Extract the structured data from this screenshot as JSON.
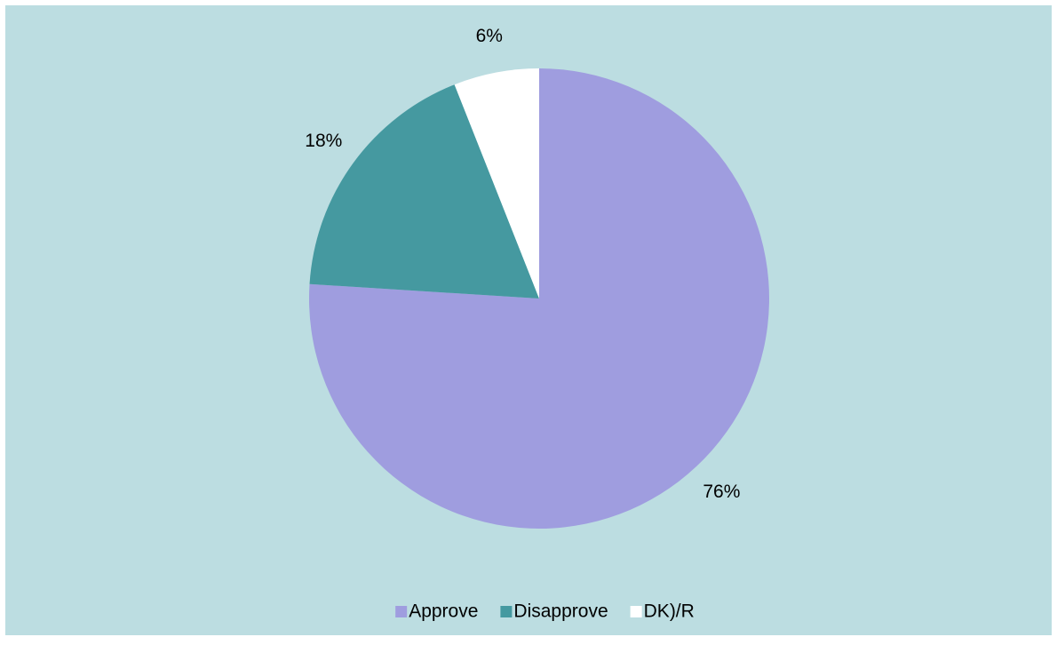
{
  "chart_data": {
    "type": "pie",
    "categories": [
      "Approve",
      "Disapprove",
      "DK)/R"
    ],
    "values": [
      76,
      18,
      6
    ],
    "value_labels": [
      "76%",
      "18%",
      "6%"
    ],
    "colors": [
      "#9f9ddf",
      "#4599a0",
      "#ffffff"
    ],
    "legend": "bottom"
  }
}
